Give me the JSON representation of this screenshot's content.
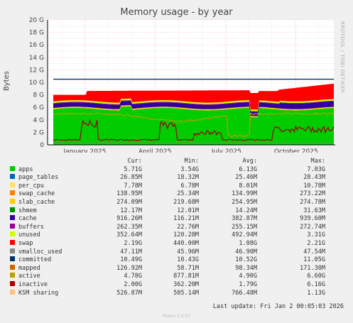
{
  "side_label": "RRDTOOL / TOBI OETIKER",
  "chart_data": {
    "type": "area",
    "title": "Memory usage - by year",
    "ylabel": "Bytes",
    "ylim": [
      0,
      20
    ],
    "y_ticks": [
      "0",
      "2 G",
      "4 G",
      "6 G",
      "8 G",
      "10 G",
      "12 G",
      "14 G",
      "16 G",
      "18 G",
      "20 G"
    ],
    "x_ticks": [
      "January 2025",
      "April 2025",
      "July 2025",
      "October 2025"
    ],
    "grid": true,
    "colors": {
      "apps": "#00cc00",
      "page_tables": "#0066b3",
      "per_cpu": "#ff8000",
      "swap_cache": "#ffcc00",
      "slab_cache": "#330099",
      "shmem": "#990099",
      "cache": "#ccff00",
      "buffers": "#ff0000",
      "unused": "#888888",
      "swap": "#cc0000",
      "committed": "#003366",
      "mapped": "#cc6600",
      "active": "#9a9a00",
      "inactive": "#990000"
    },
    "approx_levels": {
      "apps_base": 5.7,
      "buffers_band_top": 8.6,
      "committed": 10.5,
      "active": 4.8,
      "inactive": 2.0
    }
  },
  "legend": {
    "headers": [
      "Cur:",
      "Min:",
      "Avg:",
      "Max:"
    ],
    "rows": [
      {
        "name": "apps",
        "color": "#00cc00",
        "cur": "5.71G",
        "min": "3.54G",
        "avg": "6.13G",
        "max": "7.03G"
      },
      {
        "name": "page_tables",
        "color": "#0066b3",
        "cur": "26.85M",
        "min": "18.32M",
        "avg": "25.46M",
        "max": "28.43M"
      },
      {
        "name": "per_cpu",
        "color": "#ffe066",
        "cur": "7.78M",
        "min": "6.78M",
        "avg": "8.01M",
        "max": "10.78M"
      },
      {
        "name": "swap_cache",
        "color": "#ff8000",
        "cur": "138.95M",
        "min": "25.34M",
        "avg": "134.99M",
        "max": "273.22M"
      },
      {
        "name": "slab_cache",
        "color": "#ffcc00",
        "cur": "274.09M",
        "min": "219.68M",
        "avg": "254.95M",
        "max": "274.78M"
      },
      {
        "name": "shmem",
        "color": "#008f00",
        "cur": "12.17M",
        "min": "12.01M",
        "avg": "14.24M",
        "max": "31.63M"
      },
      {
        "name": "cache",
        "color": "#330099",
        "cur": "916.26M",
        "min": "116.21M",
        "avg": "382.87M",
        "max": "939.60M"
      },
      {
        "name": "buffers",
        "color": "#990099",
        "cur": "262.35M",
        "min": "22.76M",
        "avg": "255.15M",
        "max": "272.74M"
      },
      {
        "name": "unused",
        "color": "#ccff00",
        "cur": "352.64M",
        "min": "120.28M",
        "avg": "492.94M",
        "max": "3.31G"
      },
      {
        "name": "swap",
        "color": "#ff0000",
        "cur": "2.19G",
        "min": "440.00M",
        "avg": "1.08G",
        "max": "2.21G"
      },
      {
        "name": "vmalloc_used",
        "color": "#888888",
        "cur": "47.11M",
        "min": "45.96M",
        "avg": "46.90M",
        "max": "47.54M"
      },
      {
        "name": "committed",
        "color": "#003366",
        "cur": "10.49G",
        "min": "10.43G",
        "avg": "10.52G",
        "max": "11.05G"
      },
      {
        "name": "mapped",
        "color": "#cc6600",
        "cur": "126.92M",
        "min": "58.71M",
        "avg": "98.34M",
        "max": "171.30M"
      },
      {
        "name": "active",
        "color": "#b8a000",
        "cur": "4.78G",
        "min": "877.81M",
        "avg": "4.90G",
        "max": "6.60G"
      },
      {
        "name": "inactive",
        "color": "#aa0000",
        "cur": "2.00G",
        "min": "362.20M",
        "avg": "1.79G",
        "max": "6.16G"
      },
      {
        "name": "KSM sharing",
        "color": "#ffc080",
        "cur": "526.87M",
        "min": "505.14M",
        "avg": "766.48M",
        "max": "1.13G"
      }
    ]
  },
  "last_update": "Last update: Fri Jan  2 00:05:03 2026",
  "munin_version": "Munin 2.0.57"
}
